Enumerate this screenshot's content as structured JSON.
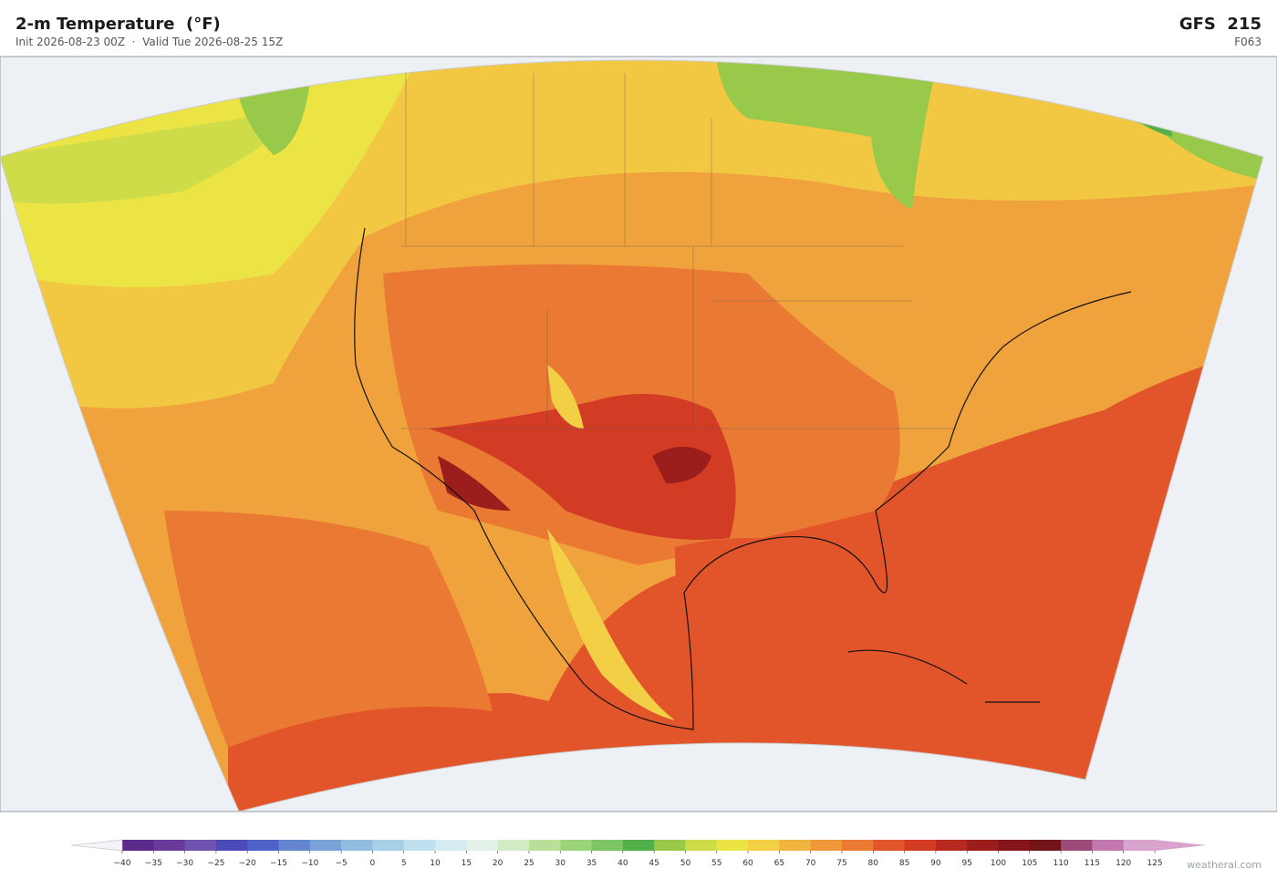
{
  "header": {
    "title": "2-m Temperature  (°F)",
    "subtitle": "Init 2026-08-23 00Z  ·  Valid Tue 2026-08-25 15Z",
    "model": "GFS  215",
    "forecast_hour": "F063"
  },
  "colorbar": {
    "ticks": [
      {
        "value": -40,
        "label": "−40"
      },
      {
        "value": -35,
        "label": "−35"
      },
      {
        "value": -30,
        "label": "−30"
      },
      {
        "value": -25,
        "label": "−25"
      },
      {
        "value": -20,
        "label": "−20"
      },
      {
        "value": -15,
        "label": "−15"
      },
      {
        "value": -10,
        "label": "−10"
      },
      {
        "value": -5,
        "label": "−5"
      },
      0,
      5,
      10,
      15,
      20,
      25,
      30,
      35,
      40,
      45,
      50,
      55,
      60,
      65,
      70,
      75,
      80,
      85,
      90,
      95,
      100,
      105,
      110,
      115,
      120,
      125
    ],
    "colors": [
      "#5b2a8c",
      "#6a3a9a",
      "#7052b0",
      "#4a4ab8",
      "#4f62c8",
      "#6486d0",
      "#7aa2d8",
      "#93bde0",
      "#a9cfe6",
      "#bfe0ef",
      "#d4ecf2",
      "#e3f3ec",
      "#d2ecc6",
      "#b8e09a",
      "#9cd47c",
      "#7cc466",
      "#52b04a",
      "#98c94a",
      "#cfdc4a",
      "#ece445",
      "#f2cf45",
      "#f2b440",
      "#ef983a",
      "#ea7a33",
      "#e2552a",
      "#d23c24",
      "#b82a20",
      "#9b1d1c",
      "#85161a",
      "#731418",
      "#9c4a7a",
      "#c278ae",
      "#d8a3cc"
    ],
    "under_color": "#f4f4f8",
    "over_color": "#d8a3cc"
  },
  "footer": {
    "credit": "weatherai.com"
  }
}
